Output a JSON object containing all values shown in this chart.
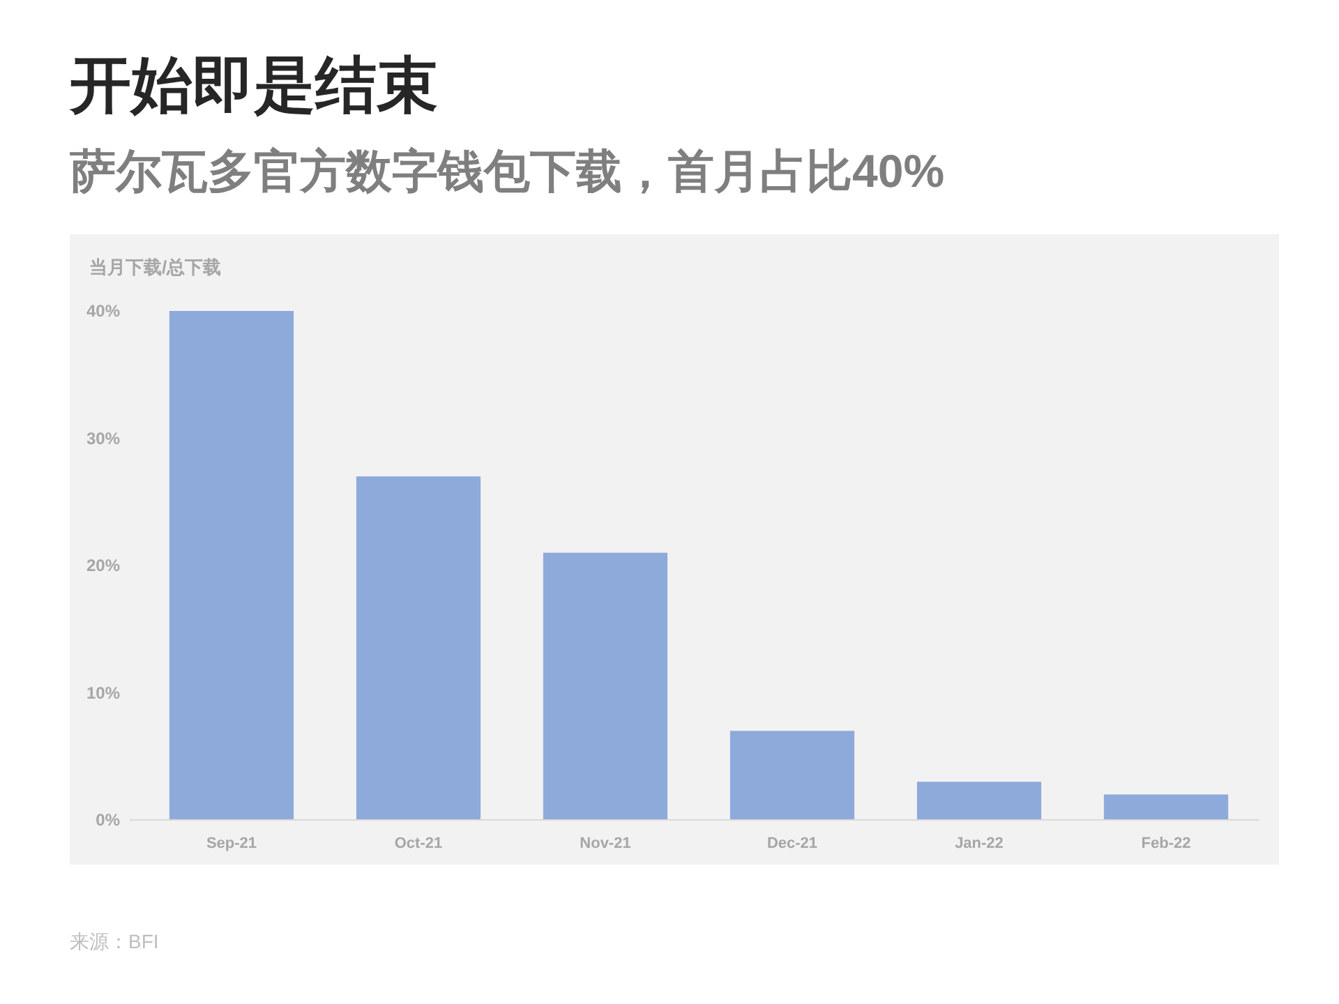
{
  "chart_data": {
    "type": "bar",
    "title": "开始即是结束",
    "subtitle": "萨尔瓦多官方数字钱包下载，首月占比40%",
    "ylabel": "当月下载/总下载",
    "categories": [
      "Sep-21",
      "Oct-21",
      "Nov-21",
      "Dec-21",
      "Jan-22",
      "Feb-22"
    ],
    "values": [
      40,
      27,
      21,
      7,
      3,
      2
    ],
    "color": "#8eaadb",
    "ylim": [
      0,
      40
    ],
    "yticks": [
      {
        "value": 0,
        "label": "0%"
      },
      {
        "value": 10,
        "label": "10%"
      },
      {
        "value": 20,
        "label": "20%"
      },
      {
        "value": 30,
        "label": "30%"
      },
      {
        "value": 40,
        "label": "40%"
      }
    ],
    "grid": false,
    "annotations": [
      "来源：BFI"
    ]
  }
}
